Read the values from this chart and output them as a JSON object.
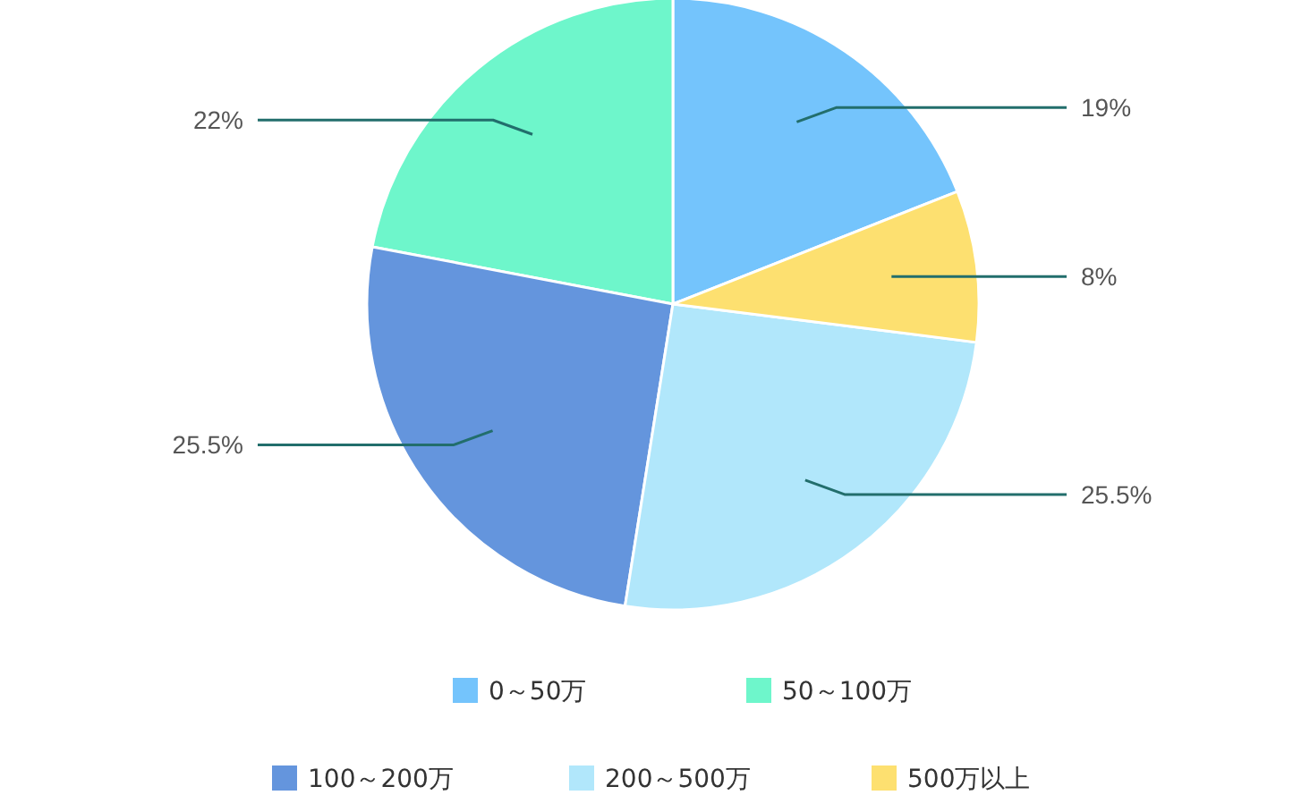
{
  "chart_data": {
    "type": "pie",
    "categories": [
      "0～50万",
      "50～100万",
      "100～200万",
      "200～500万",
      "500万以上"
    ],
    "values": [
      19,
      22,
      25.5,
      25.5,
      8
    ],
    "colors": [
      "#74c4fc",
      "#6ef6cb",
      "#6495dd",
      "#b1e7fb",
      "#fde070"
    ],
    "value_labels": [
      "19%",
      "22%",
      "25.5%",
      "25.5%",
      "8%"
    ],
    "legend": "bottom"
  }
}
